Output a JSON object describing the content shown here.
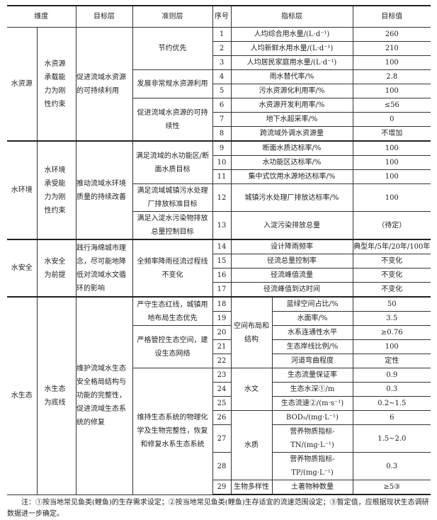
{
  "header": {
    "dimension": "维度",
    "goal": "目标层",
    "criteria": "准则层",
    "no": "序号",
    "indicator": "指标层",
    "value": "目标值"
  },
  "dimensions": [
    {
      "name": "水资源",
      "constraint": "水资源承载能力为刚性约束",
      "goal": "促进流域水资源的可持续利用"
    },
    {
      "name": "水环境",
      "constraint": "水环境承受能力为刚性约束",
      "goal": "推动流域水环境质量的持续改善"
    },
    {
      "name": "水安全",
      "constraint": "水安全为前提",
      "goal": "践行海绵城市理念，尽可能地降低对流域水文循环的影响"
    },
    {
      "name": "水生态",
      "constraint": "水生态为底线",
      "goal": "维护流域水生态安全格局结构与功能的完整性，促进流域生态系统的修复"
    }
  ],
  "criteria": [
    "节约优先",
    "发展非常规水资源利用",
    "促进流域水资源的可持续性",
    "满足流域的水功能区/断面水质目标",
    "满足流域城镇污水处理厂排放标准目标",
    "满足入淀水污染物排放总量控制目标",
    "全频率降雨径流过程线不变化",
    "严守生态红线，城镇用地布局生态优先",
    "严格管控生态空间，建设生态网络",
    "维持生态系统的物理化学及生物完整性，恢复和修复水系生态系统"
  ],
  "categories": [
    "空间布局和结构",
    "水文",
    "水质",
    "生物多样性"
  ],
  "rows": [
    {
      "no": "1",
      "indicator": "人均综合用水量/(L·d⁻¹)",
      "value": "260"
    },
    {
      "no": "2",
      "indicator": "人均新鲜水用水量/(L·d⁻¹)",
      "value": "210"
    },
    {
      "no": "3",
      "indicator": "人均居民家庭用水量/(L·d⁻¹)",
      "value": "100"
    },
    {
      "no": "4",
      "indicator": "雨水替代率/%",
      "value": "2.8"
    },
    {
      "no": "5",
      "indicator": "污水资源化利用率/%",
      "value": "100"
    },
    {
      "no": "6",
      "indicator": "水资源开发利用率/%",
      "value": "≤56"
    },
    {
      "no": "7",
      "indicator": "地下水超采率/%",
      "value": "0"
    },
    {
      "no": "8",
      "indicator": "跨流域外调水资源量",
      "value": "不增加"
    },
    {
      "no": "9",
      "indicator": "断面水质达标率/%",
      "value": "100"
    },
    {
      "no": "10",
      "indicator": "水功能区达标率/%",
      "value": "100"
    },
    {
      "no": "11",
      "indicator": "集中式饮用水源地达标率/%",
      "value": "100"
    },
    {
      "no": "12",
      "indicator": "城镇污水处理厂排放达标率/%",
      "value": "100"
    },
    {
      "no": "13",
      "indicator": "入淀污染排放总量",
      "value": "（待定）"
    },
    {
      "no": "14",
      "indicator": "设计降雨频率",
      "value": "典型年/5年/20年/100年"
    },
    {
      "no": "15",
      "indicator": "径流总量控制率",
      "value": "不变化"
    },
    {
      "no": "16",
      "indicator": "径流峰值流量",
      "value": "不变化"
    },
    {
      "no": "17",
      "indicator": "径流峰值到达时间",
      "value": "不变化"
    },
    {
      "no": "18",
      "indicator": "蓝绿空间占比/%",
      "value": "50"
    },
    {
      "no": "19",
      "indicator": "水面率/%",
      "value": "3.5"
    },
    {
      "no": "20",
      "indicator": "水系连通性水平",
      "value": "≥0.76"
    },
    {
      "no": "21",
      "indicator": "生态岸线比例/%",
      "value": "100"
    },
    {
      "no": "22",
      "indicator": "河道弯曲程度",
      "value": "定性"
    },
    {
      "no": "23",
      "indicator": "生态流量保证率",
      "value": "0.9"
    },
    {
      "no": "24",
      "indicator": "生态水深①/m",
      "value": "0.3"
    },
    {
      "no": "25",
      "indicator": "生态流速②/(m·s⁻¹)",
      "value": "0.2~1.5"
    },
    {
      "no": "26",
      "indicator": "BOD₅/(mg·L⁻¹)",
      "value": "6"
    },
    {
      "no": "27",
      "indicator": "营养物质指标-TN/(mg·L⁻¹)",
      "value": "1.5~2.0"
    },
    {
      "no": "28",
      "indicator": "营养物质指标-TP/(mg·L⁻¹)",
      "value": "0.3"
    },
    {
      "no": "29",
      "indicator": "土著物种数量",
      "value": "≥5③"
    }
  ],
  "note": "注：①按当地常见鱼类(鲤鱼)的生存需求设定；②按当地常见鱼类(鲤鱼)生存适宜的流速范围设定；③暂定值，应根据现状生态调研数据进一步确定。"
}
